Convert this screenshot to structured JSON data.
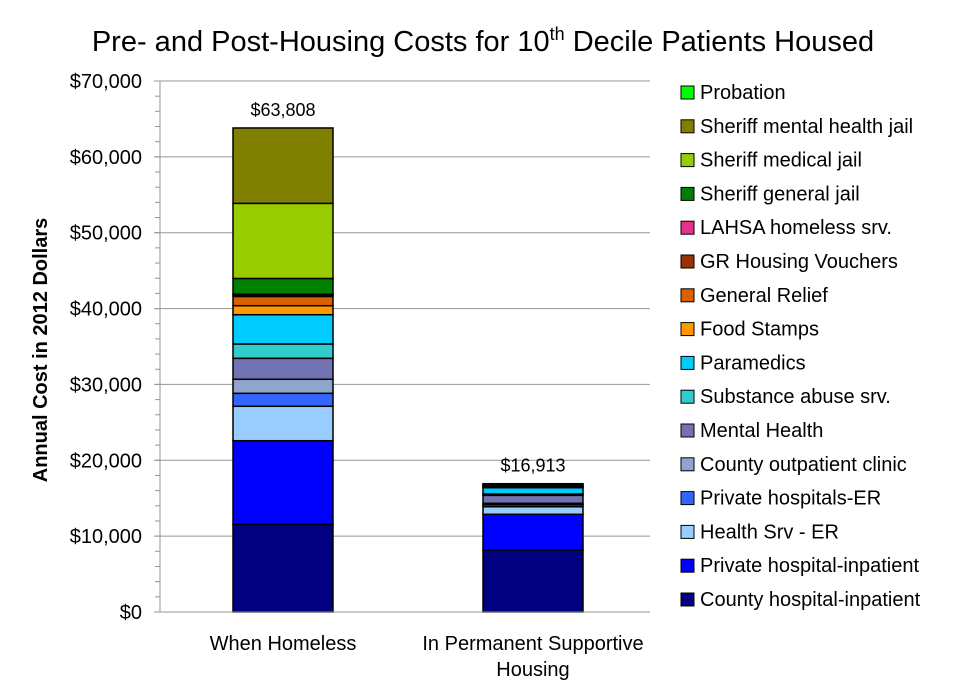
{
  "chart_data": {
    "type": "bar",
    "stacked": true,
    "title": {
      "pre": "Pre- and Post-Housing Costs for 10",
      "sup": "th",
      "post": " Decile Patients Housed"
    },
    "ylabel": "Annual Cost in 2012 Dollars",
    "xlabel": "",
    "ylim": [
      0,
      70000
    ],
    "ytick_step": 10000,
    "yminor_step": 2000,
    "ytick_labels": [
      "$0",
      "$10,000",
      "$20,000",
      "$30,000",
      "$40,000",
      "$50,000",
      "$60,000",
      "$70,000"
    ],
    "grid": true,
    "legend_position": "right",
    "categories": [
      [
        "When Homeless"
      ],
      [
        "In Permanent Supportive",
        "Housing"
      ]
    ],
    "totals_labels": [
      "$63,808",
      "$16,913"
    ],
    "series": [
      {
        "name": "County hospital-inpatient",
        "color": "#000080",
        "values": [
          11560,
          8170
        ]
      },
      {
        "name": "Private hospital-inpatient",
        "color": "#0000ff",
        "values": [
          11020,
          4710
        ]
      },
      {
        "name": "Health Srv - ER",
        "color": "#99ccff",
        "values": [
          4540,
          1000
        ]
      },
      {
        "name": "Private hospitals-ER",
        "color": "#3366ff",
        "values": [
          1710,
          260
        ]
      },
      {
        "name": "County outpatient clinic",
        "color": "#8fa5cc",
        "values": [
          1850,
          190
        ]
      },
      {
        "name": "Mental Health",
        "color": "#7373b4",
        "values": [
          2760,
          1050
        ]
      },
      {
        "name": "Substance abuse srv.",
        "color": "#33cccc",
        "values": [
          1890,
          170
        ]
      },
      {
        "name": "Paramedics",
        "color": "#00ccff",
        "values": [
          3860,
          840
        ]
      },
      {
        "name": "Food Stamps",
        "color": "#ff9900",
        "values": [
          1190,
          100
        ]
      },
      {
        "name": "General Relief",
        "color": "#dd6000",
        "values": [
          1220,
          150
        ]
      },
      {
        "name": "GR Housing Vouchers",
        "color": "#993300",
        "values": [
          200,
          0
        ]
      },
      {
        "name": "LAHSA homeless srv.",
        "color": "#e8308c",
        "values": [
          100,
          0
        ]
      },
      {
        "name": "Sheriff general jail",
        "color": "#008000",
        "values": [
          2070,
          153
        ]
      },
      {
        "name": "Sheriff medical jail",
        "color": "#99cc00",
        "values": [
          9900,
          0
        ]
      },
      {
        "name": "Sheriff mental health jail",
        "color": "#808000",
        "values": [
          9938,
          120
        ]
      },
      {
        "name": "Probation",
        "color": "#00ff00",
        "values": [
          0,
          0
        ]
      }
    ]
  }
}
